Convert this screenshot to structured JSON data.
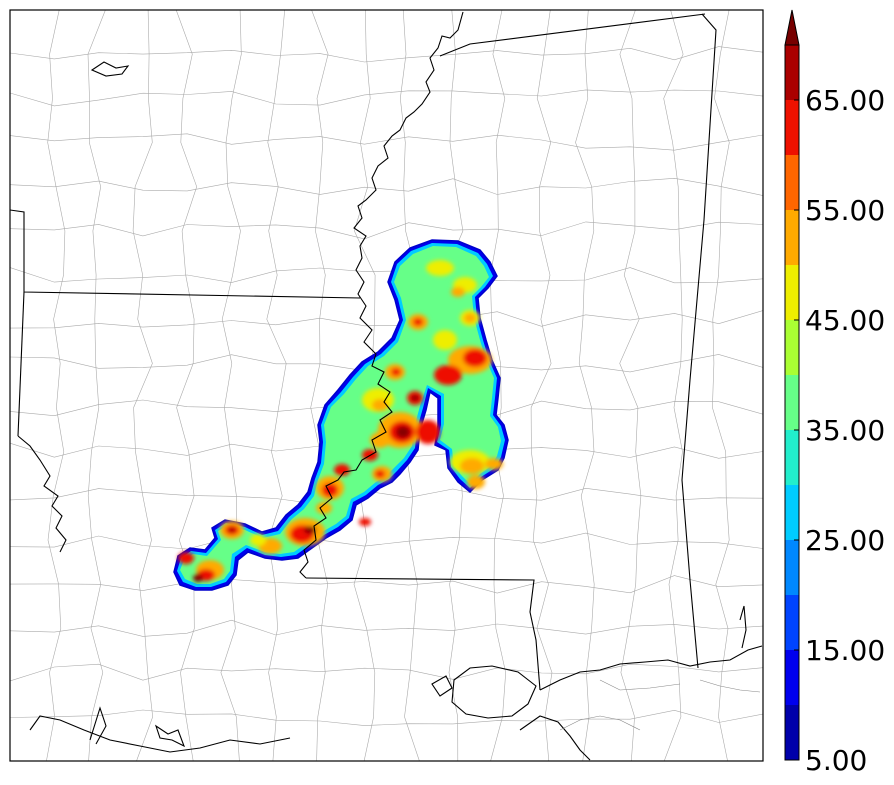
{
  "map": {
    "region": "Lower Mississippi Valley radar reflectivity composite"
  },
  "colorbar": {
    "extend": "max",
    "bounds": [
      5,
      10,
      15,
      20,
      25,
      30,
      35,
      40,
      45,
      50,
      55,
      60,
      65,
      70
    ],
    "colors": [
      "#0000aa",
      "#0000ee",
      "#0044ff",
      "#0088ff",
      "#00ccff",
      "#22eecc",
      "#66ff88",
      "#aaff33",
      "#eeee00",
      "#ffaa00",
      "#ff6600",
      "#ee1100",
      "#aa0000",
      "#770000"
    ],
    "ticks": [
      {
        "value": 5,
        "label": "5.00"
      },
      {
        "value": 15,
        "label": "15.00"
      },
      {
        "value": 25,
        "label": "25.00"
      },
      {
        "value": 35,
        "label": "35.00"
      },
      {
        "value": 45,
        "label": "45.00"
      },
      {
        "value": 55,
        "label": "55.00"
      },
      {
        "value": 65,
        "label": "65.00"
      }
    ]
  }
}
